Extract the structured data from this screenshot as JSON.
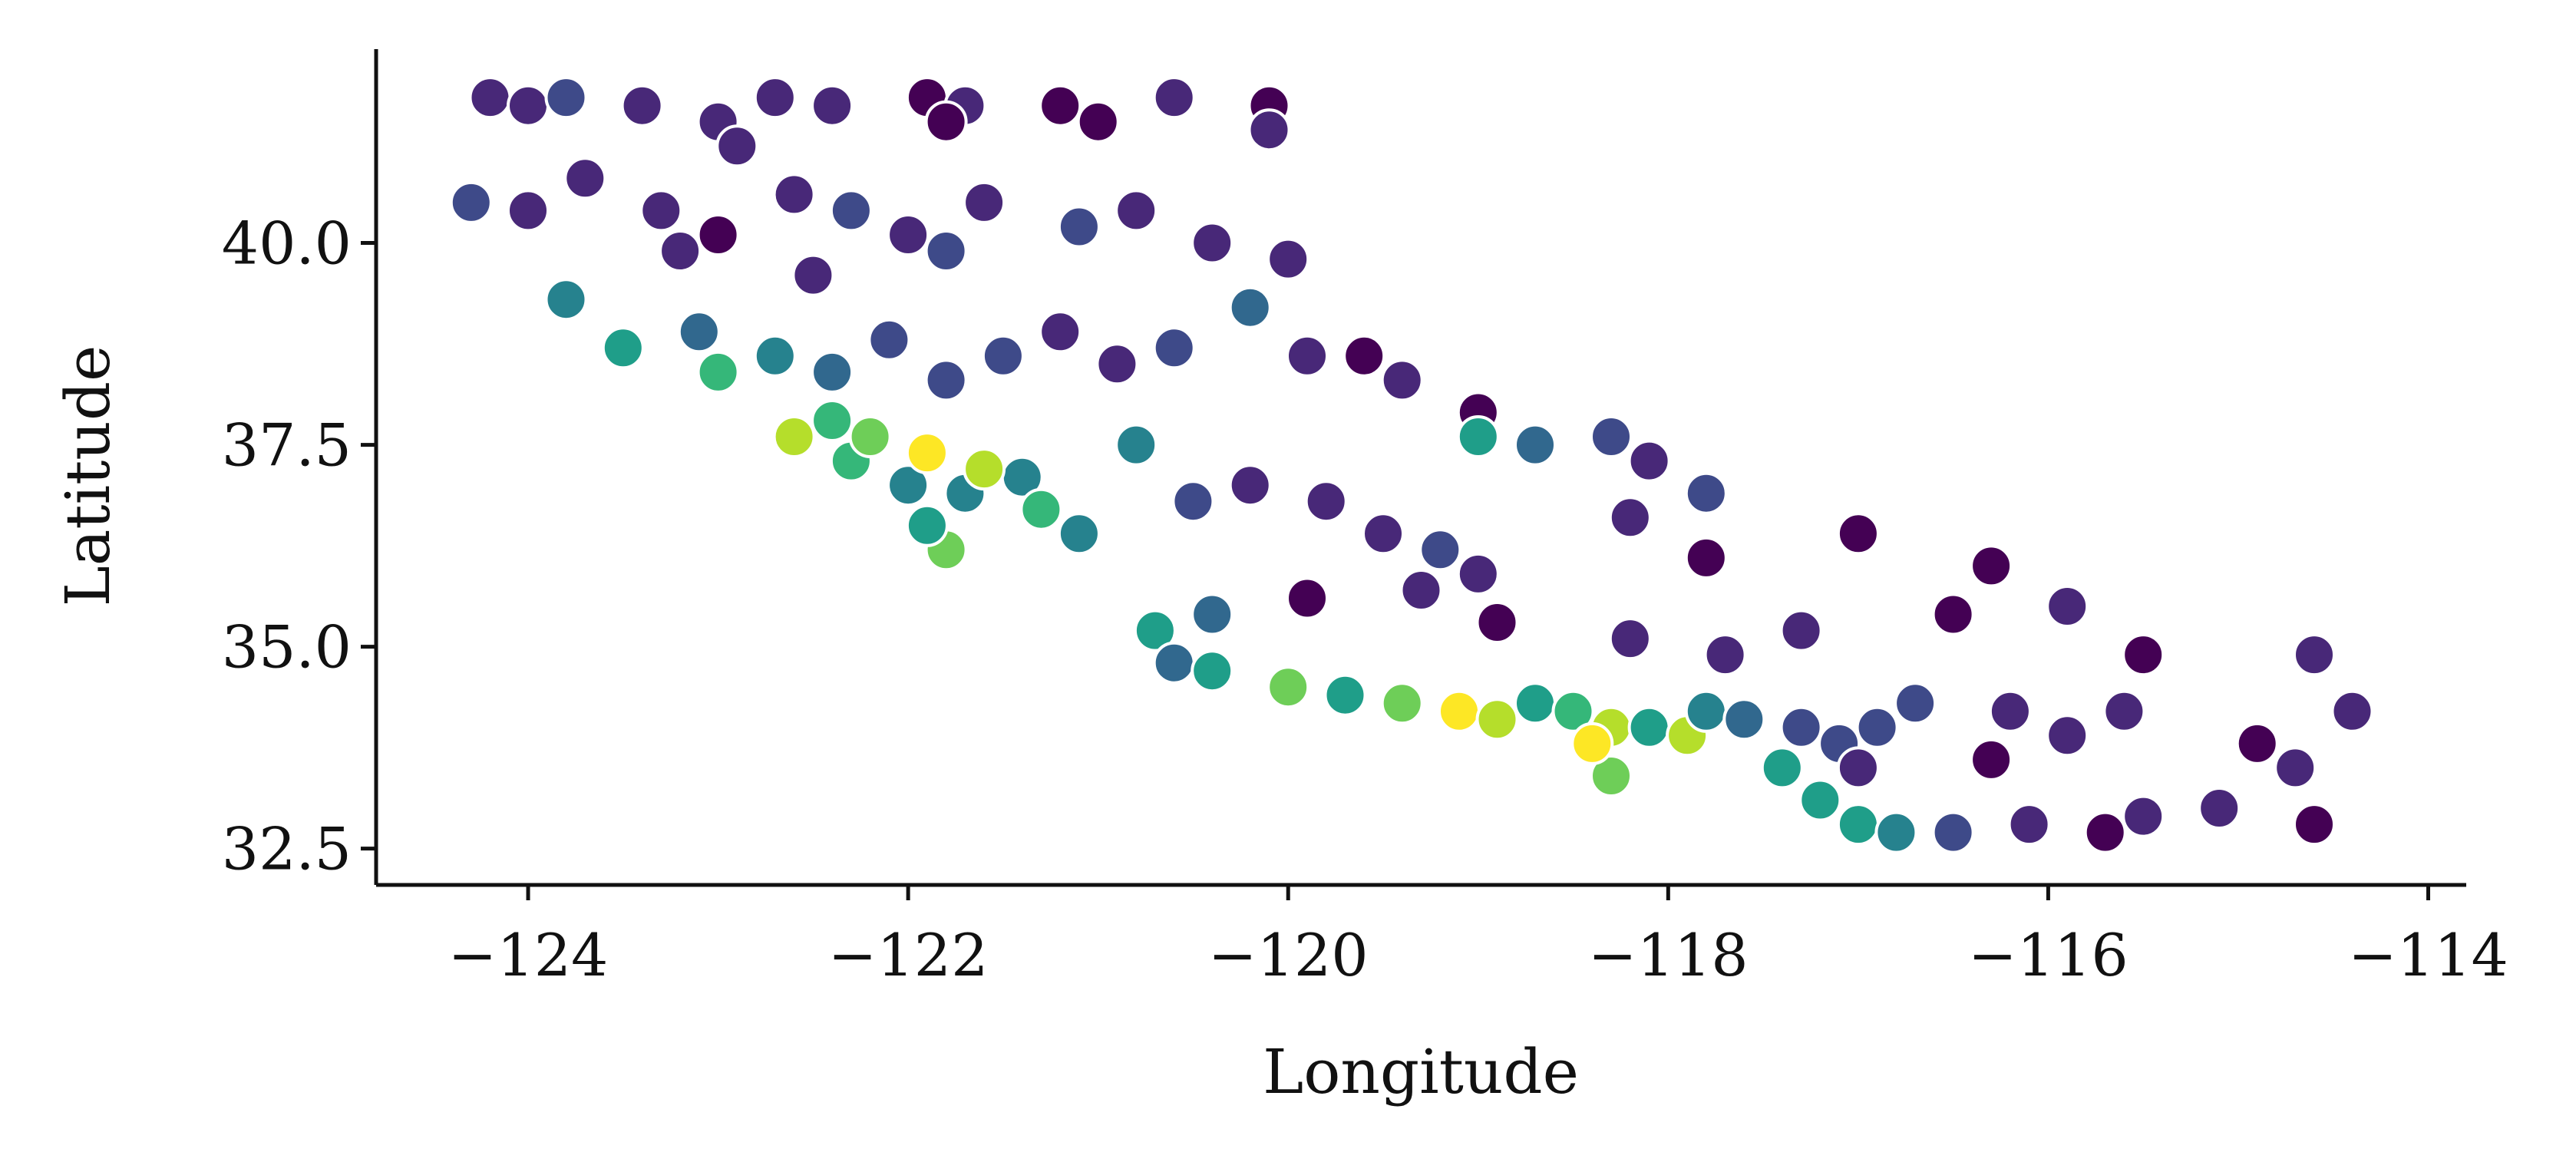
{
  "chart_data": {
    "type": "scatter",
    "title": "",
    "xlabel": "Longitude",
    "ylabel": "Latitude",
    "xlim": [
      -124.8,
      -113.8
    ],
    "ylim": [
      32.05,
      42.4
    ],
    "xticks": [
      -124,
      -122,
      -120,
      -118,
      -116,
      -114
    ],
    "yticks": [
      32.5,
      35.0,
      37.5,
      40.0
    ],
    "xtick_labels": [
      "−124",
      "−122",
      "−120",
      "−118",
      "−116",
      "−114"
    ],
    "ytick_labels": [
      "32.5",
      "35.0",
      "37.5",
      "40.0"
    ],
    "grid": false,
    "legend": "none",
    "marker_edge_color": "#ffffff",
    "colormap": "viridis",
    "colormap_stops": [
      "#440154",
      "#482878",
      "#3e4a89",
      "#31688e",
      "#26828e",
      "#1f9e89",
      "#35b779",
      "#6ece58",
      "#b5de2b",
      "#fde725"
    ],
    "point_format": "[longitude, latitude, color_value 0-1]",
    "points": [
      [
        -124.2,
        41.8,
        0.1
      ],
      [
        -124.0,
        41.7,
        0.15
      ],
      [
        -123.8,
        41.8,
        0.2
      ],
      [
        -123.4,
        41.7,
        0.15
      ],
      [
        -123.0,
        41.5,
        0.12
      ],
      [
        -122.7,
        41.8,
        0.1
      ],
      [
        -122.4,
        41.7,
        0.1
      ],
      [
        -121.9,
        41.8,
        0.05
      ],
      [
        -121.7,
        41.7,
        0.08
      ],
      [
        -121.2,
        41.7,
        0.05
      ],
      [
        -120.6,
        41.8,
        0.1
      ],
      [
        -120.1,
        41.7,
        0.05
      ],
      [
        -120.1,
        41.4,
        0.1
      ],
      [
        -121.0,
        41.5,
        0.05
      ],
      [
        -121.8,
        41.5,
        0.0
      ],
      [
        -122.9,
        41.2,
        0.1
      ],
      [
        -124.3,
        40.5,
        0.2
      ],
      [
        -124.0,
        40.4,
        0.15
      ],
      [
        -123.7,
        40.8,
        0.1
      ],
      [
        -123.3,
        40.4,
        0.1
      ],
      [
        -123.0,
        40.1,
        0.05
      ],
      [
        -122.6,
        40.6,
        0.15
      ],
      [
        -122.3,
        40.4,
        0.2
      ],
      [
        -122.0,
        40.1,
        0.1
      ],
      [
        -121.6,
        40.5,
        0.15
      ],
      [
        -121.1,
        40.2,
        0.25
      ],
      [
        -120.8,
        40.4,
        0.1
      ],
      [
        -120.4,
        40.0,
        0.15
      ],
      [
        -120.0,
        39.8,
        0.1
      ],
      [
        -121.8,
        39.9,
        0.2
      ],
      [
        -122.5,
        39.6,
        0.15
      ],
      [
        -123.2,
        39.9,
        0.1
      ],
      [
        -123.8,
        39.3,
        0.4
      ],
      [
        -123.5,
        38.7,
        0.55
      ],
      [
        -123.1,
        38.9,
        0.35
      ],
      [
        -123.0,
        38.4,
        0.7
      ],
      [
        -122.7,
        38.6,
        0.4
      ],
      [
        -122.4,
        38.4,
        0.3
      ],
      [
        -122.1,
        38.8,
        0.2
      ],
      [
        -121.8,
        38.3,
        0.25
      ],
      [
        -121.5,
        38.6,
        0.2
      ],
      [
        -121.2,
        38.9,
        0.1
      ],
      [
        -120.9,
        38.5,
        0.15
      ],
      [
        -120.6,
        38.7,
        0.2
      ],
      [
        -120.2,
        39.2,
        0.3
      ],
      [
        -119.9,
        38.6,
        0.15
      ],
      [
        -119.6,
        38.6,
        0.05
      ],
      [
        -119.4,
        38.3,
        0.1
      ],
      [
        -119.0,
        37.9,
        0.05
      ],
      [
        -119.0,
        37.6,
        0.5
      ],
      [
        -118.7,
        37.5,
        0.35
      ],
      [
        -118.3,
        37.6,
        0.2
      ],
      [
        -118.1,
        37.3,
        0.1
      ],
      [
        -117.8,
        36.9,
        0.2
      ],
      [
        -118.2,
        36.6,
        0.1
      ],
      [
        -117.8,
        36.1,
        0.05
      ],
      [
        -117.0,
        36.4,
        0.0
      ],
      [
        -120.8,
        37.5,
        0.45
      ],
      [
        -121.4,
        37.1,
        0.45
      ],
      [
        -121.7,
        36.9,
        0.4
      ],
      [
        -122.0,
        37.0,
        0.45
      ],
      [
        -122.3,
        37.3,
        0.65
      ],
      [
        -122.6,
        37.6,
        0.9
      ],
      [
        -122.4,
        37.8,
        0.7
      ],
      [
        -122.2,
        37.6,
        0.8
      ],
      [
        -121.9,
        37.4,
        0.95
      ],
      [
        -121.6,
        37.2,
        0.85
      ],
      [
        -121.8,
        36.2,
        0.8
      ],
      [
        -121.9,
        36.5,
        0.55
      ],
      [
        -121.3,
        36.7,
        0.65
      ],
      [
        -121.1,
        36.4,
        0.4
      ],
      [
        -120.5,
        36.8,
        0.2
      ],
      [
        -120.2,
        37.0,
        0.1
      ],
      [
        -119.8,
        36.8,
        0.15
      ],
      [
        -119.5,
        36.4,
        0.1
      ],
      [
        -119.2,
        36.2,
        0.2
      ],
      [
        -119.0,
        35.9,
        0.15
      ],
      [
        -118.9,
        35.3,
        0.05
      ],
      [
        -119.3,
        35.7,
        0.1
      ],
      [
        -119.9,
        35.6,
        0.05
      ],
      [
        -120.4,
        35.4,
        0.3
      ],
      [
        -120.7,
        35.2,
        0.5
      ],
      [
        -120.6,
        34.8,
        0.35
      ],
      [
        -120.4,
        34.7,
        0.55
      ],
      [
        -120.0,
        34.5,
        0.8
      ],
      [
        -119.7,
        34.4,
        0.55
      ],
      [
        -119.4,
        34.3,
        0.75
      ],
      [
        -119.1,
        34.2,
        0.95
      ],
      [
        -118.9,
        34.1,
        0.9
      ],
      [
        -118.7,
        34.3,
        0.6
      ],
      [
        -118.5,
        34.2,
        0.7
      ],
      [
        -118.3,
        34.0,
        0.85
      ],
      [
        -118.3,
        33.4,
        0.8
      ],
      [
        -118.4,
        33.8,
        0.95
      ],
      [
        -118.1,
        34.0,
        0.55
      ],
      [
        -117.9,
        33.9,
        0.85
      ],
      [
        -117.8,
        34.2,
        0.4
      ],
      [
        -117.6,
        34.1,
        0.3
      ],
      [
        -117.3,
        34.0,
        0.25
      ],
      [
        -117.1,
        33.8,
        0.2
      ],
      [
        -117.4,
        33.5,
        0.55
      ],
      [
        -117.2,
        33.1,
        0.6
      ],
      [
        -117.0,
        32.8,
        0.55
      ],
      [
        -116.8,
        32.7,
        0.4
      ],
      [
        -116.5,
        32.7,
        0.2
      ],
      [
        -116.1,
        32.8,
        0.1
      ],
      [
        -115.7,
        32.7,
        0.05
      ],
      [
        -115.5,
        32.9,
        0.15
      ],
      [
        -115.1,
        33.0,
        0.1
      ],
      [
        -114.6,
        32.8,
        0.05
      ],
      [
        -114.7,
        33.5,
        0.1
      ],
      [
        -114.9,
        33.8,
        0.05
      ],
      [
        -114.4,
        34.2,
        0.15
      ],
      [
        -114.6,
        34.9,
        0.15
      ],
      [
        -115.5,
        34.9,
        0.05
      ],
      [
        -115.9,
        35.5,
        0.1
      ],
      [
        -116.3,
        36.0,
        0.05
      ],
      [
        -116.5,
        35.4,
        0.0
      ],
      [
        -117.3,
        35.2,
        0.1
      ],
      [
        -117.7,
        34.9,
        0.15
      ],
      [
        -118.2,
        35.1,
        0.1
      ],
      [
        -116.2,
        34.2,
        0.15
      ],
      [
        -116.7,
        34.3,
        0.25
      ],
      [
        -116.9,
        34.0,
        0.2
      ],
      [
        -115.6,
        34.2,
        0.1
      ],
      [
        -117.0,
        33.5,
        0.15
      ],
      [
        -116.3,
        33.6,
        0.05
      ],
      [
        -115.9,
        33.9,
        0.1
      ]
    ]
  }
}
